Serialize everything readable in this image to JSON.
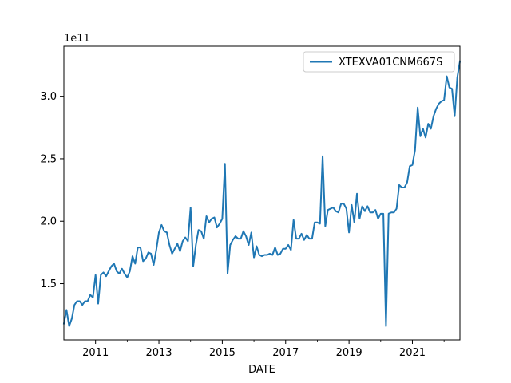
{
  "chart_data": {
    "type": "line",
    "xlabel": "DATE",
    "ylabel": "",
    "y_offset_label": "1e11",
    "legend_position": "top-right",
    "grid": false,
    "xlim": [
      "2010-01",
      "2022-07"
    ],
    "ylim": [
      105000000000,
      340000000000
    ],
    "x_ticks": [
      "2011",
      "2013",
      "2015",
      "2017",
      "2019",
      "2021"
    ],
    "y_ticks": [
      "1.5",
      "2.0",
      "2.5",
      "3.0"
    ],
    "y_tick_values": [
      150000000000,
      200000000000,
      250000000000,
      300000000000
    ],
    "series": [
      {
        "name": "XTEXVA01CNM667S",
        "color": "#1f77b4",
        "x": [
          "2010-01",
          "2010-02",
          "2010-03",
          "2010-04",
          "2010-05",
          "2010-06",
          "2010-07",
          "2010-08",
          "2010-09",
          "2010-10",
          "2010-11",
          "2010-12",
          "2011-01",
          "2011-02",
          "2011-03",
          "2011-04",
          "2011-05",
          "2011-06",
          "2011-07",
          "2011-08",
          "2011-09",
          "2011-10",
          "2011-11",
          "2011-12",
          "2012-01",
          "2012-02",
          "2012-03",
          "2012-04",
          "2012-05",
          "2012-06",
          "2012-07",
          "2012-08",
          "2012-09",
          "2012-10",
          "2012-11",
          "2012-12",
          "2013-01",
          "2013-02",
          "2013-03",
          "2013-04",
          "2013-05",
          "2013-06",
          "2013-07",
          "2013-08",
          "2013-09",
          "2013-10",
          "2013-11",
          "2013-12",
          "2014-01",
          "2014-02",
          "2014-03",
          "2014-04",
          "2014-05",
          "2014-06",
          "2014-07",
          "2014-08",
          "2014-09",
          "2014-10",
          "2014-11",
          "2014-12",
          "2015-01",
          "2015-02",
          "2015-03",
          "2015-04",
          "2015-05",
          "2015-06",
          "2015-07",
          "2015-08",
          "2015-09",
          "2015-10",
          "2015-11",
          "2015-12",
          "2016-01",
          "2016-02",
          "2016-03",
          "2016-04",
          "2016-05",
          "2016-06",
          "2016-07",
          "2016-08",
          "2016-09",
          "2016-10",
          "2016-11",
          "2016-12",
          "2017-01",
          "2017-02",
          "2017-03",
          "2017-04",
          "2017-05",
          "2017-06",
          "2017-07",
          "2017-08",
          "2017-09",
          "2017-10",
          "2017-11",
          "2017-12",
          "2018-01",
          "2018-02",
          "2018-03",
          "2018-04",
          "2018-05",
          "2018-06",
          "2018-07",
          "2018-08",
          "2018-09",
          "2018-10",
          "2018-11",
          "2018-12",
          "2019-01",
          "2019-02",
          "2019-03",
          "2019-04",
          "2019-05",
          "2019-06",
          "2019-07",
          "2019-08",
          "2019-09",
          "2019-10",
          "2019-11",
          "2019-12",
          "2020-01",
          "2020-02",
          "2020-03",
          "2020-04",
          "2020-05",
          "2020-06",
          "2020-07",
          "2020-08",
          "2020-09",
          "2020-10",
          "2020-11",
          "2020-12",
          "2021-01",
          "2021-02",
          "2021-03",
          "2021-04",
          "2021-05",
          "2021-06",
          "2021-07",
          "2021-08",
          "2021-09",
          "2021-10",
          "2021-11",
          "2021-12",
          "2022-01",
          "2022-02",
          "2022-03",
          "2022-04",
          "2022-05",
          "2022-06",
          "2022-07"
        ],
        "values": [
          118000000000,
          129000000000,
          116000000000,
          122000000000,
          133000000000,
          136000000000,
          136000000000,
          133000000000,
          136000000000,
          136000000000,
          141000000000,
          139000000000,
          157000000000,
          134000000000,
          157000000000,
          159000000000,
          156000000000,
          160000000000,
          164000000000,
          166000000000,
          160000000000,
          158000000000,
          162000000000,
          158000000000,
          155000000000,
          160000000000,
          172000000000,
          166000000000,
          179000000000,
          179000000000,
          168000000000,
          170000000000,
          175000000000,
          174000000000,
          165000000000,
          177000000000,
          191000000000,
          197000000000,
          192000000000,
          191000000000,
          181000000000,
          174000000000,
          178000000000,
          182000000000,
          176000000000,
          184000000000,
          187000000000,
          184000000000,
          211000000000,
          164000000000,
          181000000000,
          193000000000,
          192000000000,
          186000000000,
          204000000000,
          199000000000,
          202000000000,
          203000000000,
          195000000000,
          198000000000,
          202000000000,
          246000000000,
          158000000000,
          181000000000,
          185000000000,
          188000000000,
          186000000000,
          186000000000,
          192000000000,
          188000000000,
          181000000000,
          191000000000,
          171000000000,
          180000000000,
          173000000000,
          172000000000,
          173000000000,
          173000000000,
          174000000000,
          173000000000,
          179000000000,
          173000000000,
          174000000000,
          178000000000,
          178000000000,
          181000000000,
          177000000000,
          201000000000,
          186000000000,
          186000000000,
          190000000000,
          185000000000,
          189000000000,
          186000000000,
          186000000000,
          199000000000,
          199000000000,
          198000000000,
          252000000000,
          196000000000,
          209000000000,
          210000000000,
          211000000000,
          208000000000,
          207000000000,
          214000000000,
          214000000000,
          210000000000,
          191000000000,
          213000000000,
          199000000000,
          222000000000,
          202000000000,
          212000000000,
          208000000000,
          212000000000,
          207000000000,
          207000000000,
          209000000000,
          202000000000,
          206000000000,
          206000000000,
          116000000000,
          206000000000,
          207000000000,
          207000000000,
          210000000000,
          229000000000,
          227000000000,
          227000000000,
          231000000000,
          244000000000,
          245000000000,
          257000000000,
          291000000000,
          268000000000,
          274000000000,
          267000000000,
          278000000000,
          274000000000,
          284000000000,
          290000000000,
          294000000000,
          296000000000,
          297000000000,
          316000000000,
          307000000000,
          306000000000,
          284000000000,
          315000000000,
          328000000000
        ]
      }
    ]
  }
}
